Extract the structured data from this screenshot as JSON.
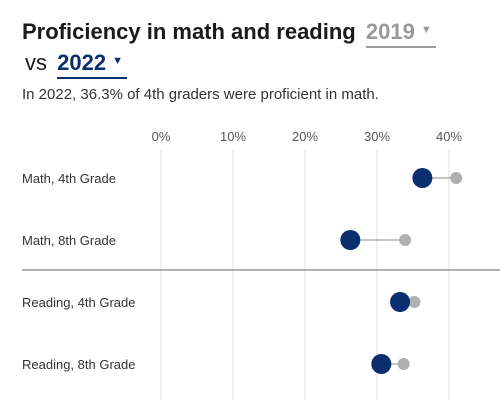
{
  "title": {
    "main": "Proficiency in math and reading",
    "compare_year": "2019",
    "vs": "vs",
    "current_year": "2022"
  },
  "subtitle": "In 2022, 36.3% of 4th graders were proficient in math.",
  "icons": {
    "dropdown": "caret-down-icon"
  },
  "colors": {
    "current": "#0b2e6e",
    "compare": "#b0b0b0",
    "grid": "#e2e2e2",
    "divider": "#999999"
  },
  "chart_data": {
    "type": "scatter",
    "subtype": "dot-plot",
    "x_ticks": [
      "0%",
      "10%",
      "20%",
      "30%",
      "40%"
    ],
    "xlim": [
      0,
      40
    ],
    "grid": true,
    "categories": [
      "Math, 4th Grade",
      "Math, 8th Grade",
      "Reading, 4th Grade",
      "Reading, 8th Grade"
    ],
    "series": [
      {
        "name": "2022",
        "values": [
          36.3,
          26.3,
          33.2,
          30.6
        ]
      },
      {
        "name": "2019",
        "values": [
          41.0,
          33.9,
          35.2,
          33.7
        ]
      }
    ]
  }
}
